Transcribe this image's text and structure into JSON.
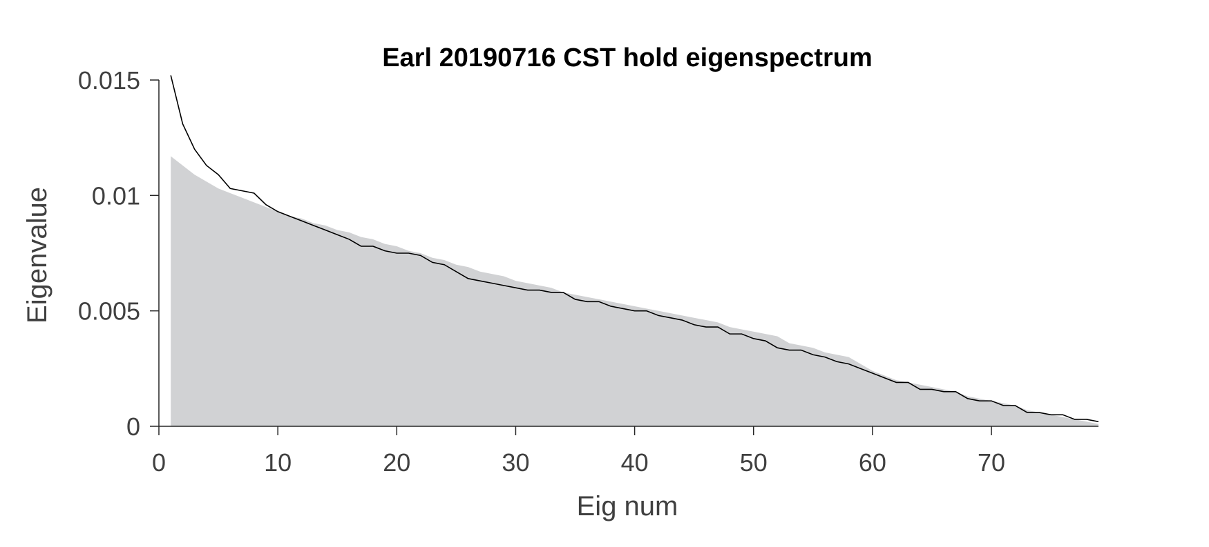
{
  "chart_data": {
    "type": "line",
    "title": "Earl 20190716 CST hold eigenspectrum",
    "xlabel": "Eig num",
    "ylabel": "Eigenvalue",
    "xlim": [
      0,
      79
    ],
    "ylim": [
      0,
      0.015
    ],
    "xticks": [
      0,
      10,
      20,
      30,
      40,
      50,
      60,
      70
    ],
    "xtick_labels": [
      "0",
      "10",
      "20",
      "30",
      "40",
      "50",
      "60",
      "70"
    ],
    "yticks": [
      0,
      0.005,
      0.01,
      0.015
    ],
    "ytick_labels": [
      "0",
      "0.005",
      "0.01",
      "0.015"
    ],
    "grid": false,
    "legend": "none",
    "colors": {
      "area": "#d1d2d4",
      "line": "#000000",
      "axis": "#262626",
      "text": "#404040"
    },
    "series": [
      {
        "type": "line",
        "x": [
          1,
          2,
          3,
          4,
          5,
          6,
          7,
          8,
          9,
          10,
          11,
          12,
          13,
          14,
          15,
          16,
          17,
          18,
          19,
          20,
          21,
          22,
          23,
          24,
          25,
          26,
          27,
          28,
          29,
          30,
          31,
          32,
          33,
          34,
          35,
          36,
          37,
          38,
          39,
          40,
          41,
          42,
          43,
          44,
          45,
          46,
          47,
          48,
          49,
          50,
          51,
          52,
          53,
          54,
          55,
          56,
          57,
          58,
          59,
          60,
          61,
          62,
          63,
          64,
          65,
          66,
          67,
          68,
          69,
          70,
          71,
          72,
          73,
          74,
          75,
          76,
          77,
          78,
          79
        ],
        "y": [
          0.0152,
          0.0131,
          0.012,
          0.0113,
          0.0109,
          0.0103,
          0.0102,
          0.0101,
          0.0096,
          0.0093,
          0.0091,
          0.0089,
          0.0087,
          0.0085,
          0.0083,
          0.0081,
          0.0078,
          0.0078,
          0.0076,
          0.0075,
          0.0075,
          0.0074,
          0.0071,
          0.007,
          0.0067,
          0.0064,
          0.0063,
          0.0062,
          0.0061,
          0.006,
          0.0059,
          0.0059,
          0.0058,
          0.0058,
          0.0055,
          0.0054,
          0.0054,
          0.0052,
          0.0051,
          0.005,
          0.005,
          0.0048,
          0.0047,
          0.0046,
          0.0044,
          0.0043,
          0.0043,
          0.004,
          0.004,
          0.0038,
          0.0037,
          0.0034,
          0.0033,
          0.0033,
          0.0031,
          0.003,
          0.0028,
          0.0027,
          0.0025,
          0.0023,
          0.0021,
          0.0019,
          0.0019,
          0.0016,
          0.0016,
          0.0015,
          0.0015,
          0.0012,
          0.0011,
          0.0011,
          0.0009,
          0.0009,
          0.0006,
          0.0006,
          0.0005,
          0.0005,
          0.0003,
          0.0003,
          0.0002
        ]
      },
      {
        "type": "area",
        "x": [
          1,
          2,
          3,
          4,
          5,
          6,
          7,
          8,
          9,
          10,
          11,
          12,
          13,
          14,
          15,
          16,
          17,
          18,
          19,
          20,
          21,
          22,
          23,
          24,
          25,
          26,
          27,
          28,
          29,
          30,
          31,
          32,
          33,
          34,
          35,
          36,
          37,
          38,
          39,
          40,
          41,
          42,
          43,
          44,
          45,
          46,
          47,
          48,
          49,
          50,
          51,
          52,
          53,
          54,
          55,
          56,
          57,
          58,
          59,
          60,
          61,
          62,
          63,
          64,
          65,
          66,
          67,
          68,
          69,
          70,
          71,
          72,
          73,
          74,
          75,
          76,
          77,
          78,
          79
        ],
        "y": [
          0.0117,
          0.0113,
          0.0109,
          0.0106,
          0.0103,
          0.0101,
          0.0099,
          0.0097,
          0.0095,
          0.0093,
          0.0091,
          0.009,
          0.0088,
          0.0087,
          0.0085,
          0.0084,
          0.0082,
          0.0081,
          0.0079,
          0.0078,
          0.0076,
          0.0075,
          0.0073,
          0.0072,
          0.007,
          0.0069,
          0.0067,
          0.0066,
          0.0065,
          0.0063,
          0.0062,
          0.0061,
          0.006,
          0.0058,
          0.0057,
          0.0056,
          0.0055,
          0.0054,
          0.0053,
          0.0052,
          0.0051,
          0.005,
          0.0049,
          0.0048,
          0.0047,
          0.0046,
          0.0045,
          0.0043,
          0.0042,
          0.0041,
          0.004,
          0.0039,
          0.0036,
          0.0035,
          0.0034,
          0.0032,
          0.0031,
          0.003,
          0.0027,
          0.0024,
          0.0022,
          0.002,
          0.0019,
          0.0018,
          0.0017,
          0.0016,
          0.0015,
          0.0013,
          0.0012,
          0.0011,
          0.001,
          0.0009,
          0.0007,
          0.0006,
          0.0005,
          0.0004,
          0.0003,
          0.0002,
          0.0001
        ]
      }
    ]
  }
}
